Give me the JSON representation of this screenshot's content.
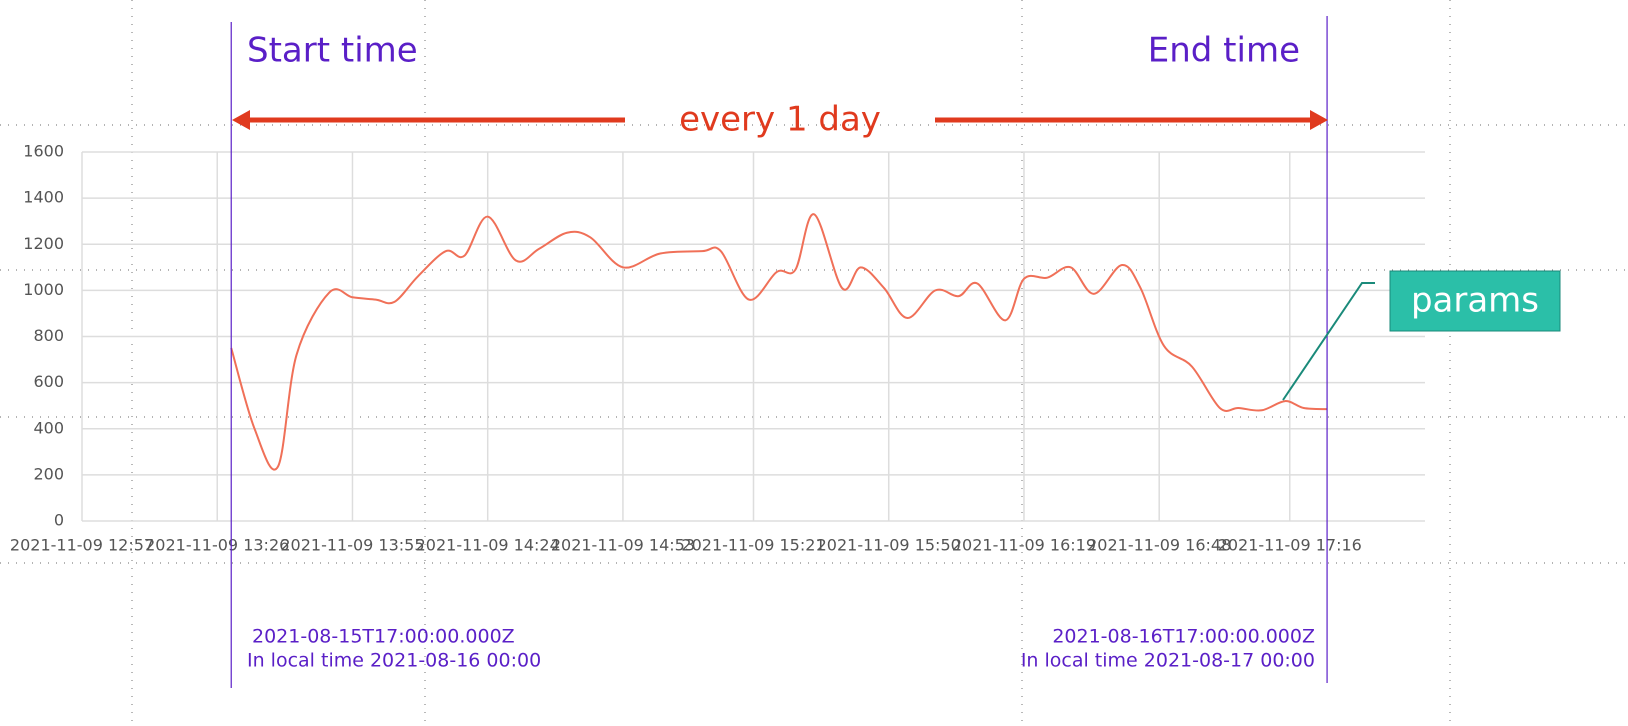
{
  "chart_data": {
    "type": "line",
    "annotations": {
      "start": "Start time",
      "end": "End time",
      "interval": "every 1 day",
      "params": "params",
      "start_utc": "2021-08-15T17:00:00.000Z",
      "start_local": "In local time 2021-08-16 00:00",
      "end_utc": "2021-08-16T17:00:00.000Z",
      "end_local": "In local time 2021-08-17 00:00"
    },
    "x": [
      "2021-11-09 13:29",
      "2021-11-09 13:34",
      "2021-11-09 13:39",
      "2021-11-09 13:43",
      "2021-11-09 13:50",
      "2021-11-09 13:55",
      "2021-11-09 14:00",
      "2021-11-09 14:04",
      "2021-11-09 14:09",
      "2021-11-09 14:15",
      "2021-11-09 14:19",
      "2021-11-09 14:24",
      "2021-11-09 14:30",
      "2021-11-09 14:35",
      "2021-11-09 14:41",
      "2021-11-09 14:46",
      "2021-11-09 14:53",
      "2021-11-09 15:01",
      "2021-11-09 15:10",
      "2021-11-09 15:14",
      "2021-11-09 15:20",
      "2021-11-09 15:26",
      "2021-11-09 15:30",
      "2021-11-09 15:34",
      "2021-11-09 15:40",
      "2021-11-09 15:44",
      "2021-11-09 15:49",
      "2021-11-09 15:54",
      "2021-11-09 16:00",
      "2021-11-09 16:05",
      "2021-11-09 16:09",
      "2021-11-09 16:15",
      "2021-11-09 16:19",
      "2021-11-09 16:24",
      "2021-11-09 16:29",
      "2021-11-09 16:34",
      "2021-11-09 16:40",
      "2021-11-09 16:44",
      "2021-11-09 16:49",
      "2021-11-09 16:55",
      "2021-11-09 17:01",
      "2021-11-09 17:05",
      "2021-11-09 17:10",
      "2021-11-09 17:15",
      "2021-11-09 17:19",
      "2021-11-09 17:24"
    ],
    "series": [
      {
        "color": "#f07058",
        "values": [
          750,
          400,
          235,
          720,
          990,
          970,
          960,
          950,
          1060,
          1170,
          1150,
          1320,
          1130,
          1180,
          1250,
          1230,
          1100,
          1160,
          1170,
          1170,
          960,
          1080,
          1090,
          1330,
          1010,
          1100,
          1010,
          880,
          1000,
          975,
          1030,
          870,
          1050,
          1055,
          1100,
          985,
          1110,
          1010,
          760,
          670,
          490,
          490,
          480,
          520,
          490,
          485
        ]
      }
    ],
    "xlim": [
      "2021-11-09 12:57",
      "2021-11-09 17:45"
    ],
    "xticks": [
      "2021-11-09 12:57",
      "2021-11-09 13:26",
      "2021-11-09 13:55",
      "2021-11-09 14:24",
      "2021-11-09 14:53",
      "2021-11-09 15:21",
      "2021-11-09 15:50",
      "2021-11-09 16:19",
      "2021-11-09 16:48",
      "2021-11-09 17:16"
    ],
    "ylim": [
      0,
      1600
    ],
    "yticks": [
      0,
      200,
      400,
      600,
      800,
      1000,
      1200,
      1400,
      1600
    ],
    "grid": true
  }
}
